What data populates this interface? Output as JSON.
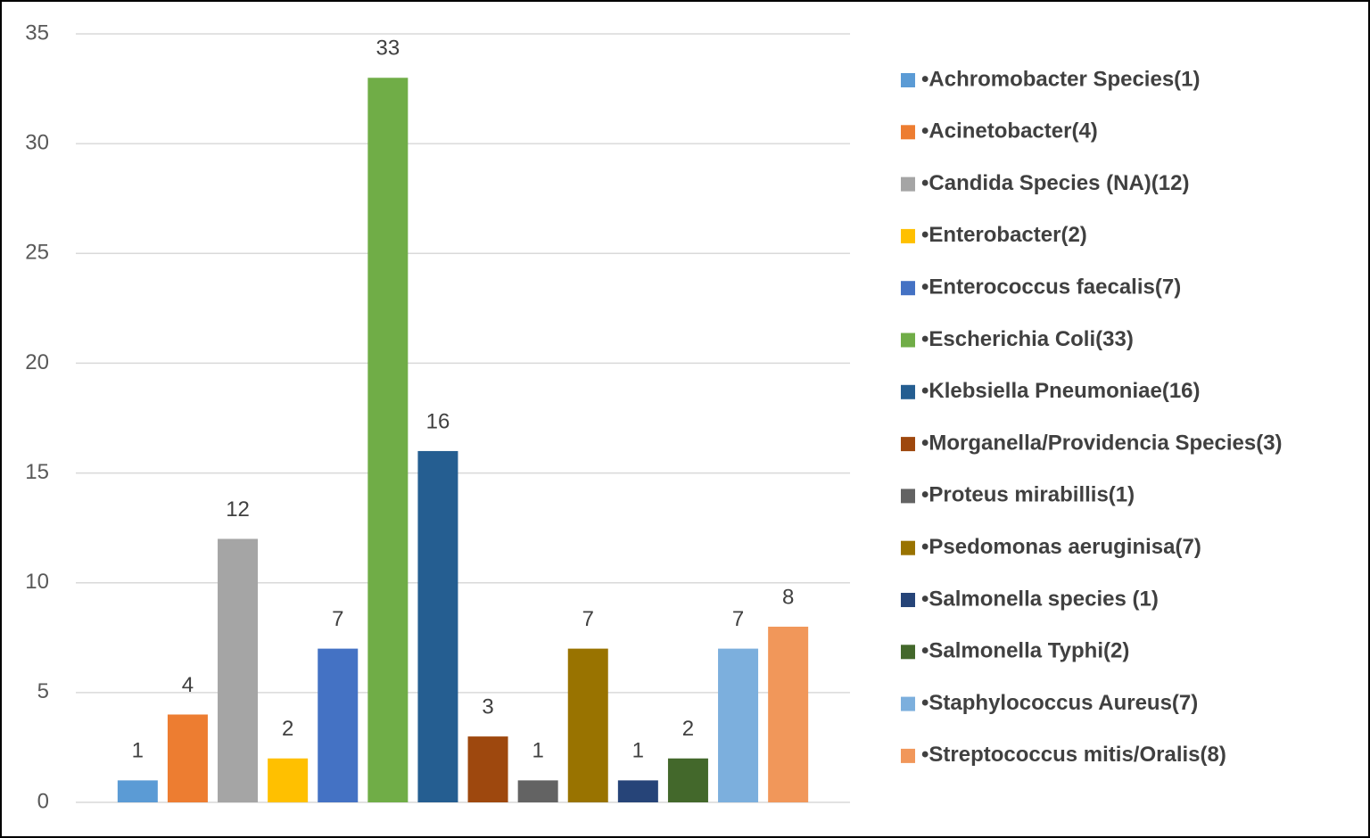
{
  "chart_data": {
    "type": "bar",
    "categories": [
      null
    ],
    "series": [
      {
        "name": "•Achromobacter Species(1)",
        "color": "#5b9bd5",
        "values": [
          1
        ]
      },
      {
        "name": "•Acinetobacter(4)",
        "color": "#ed7d31",
        "values": [
          4
        ]
      },
      {
        "name": "•Candida Species (NA)(12)",
        "color": "#a5a5a5",
        "values": [
          12
        ]
      },
      {
        "name": "•Enterobacter(2)",
        "color": "#ffc000",
        "values": [
          2
        ]
      },
      {
        "name": "•Enterococcus faecalis(7)",
        "color": "#4472c4",
        "values": [
          7
        ]
      },
      {
        "name": "•Escherichia Coli(33)",
        "color": "#70ad47",
        "values": [
          33
        ]
      },
      {
        "name": "•Klebsiella Pneumoniae(16)",
        "color": "#255e91",
        "values": [
          16
        ]
      },
      {
        "name": "•Morganella/Providencia Species(3)",
        "color": "#9e480e",
        "values": [
          3
        ]
      },
      {
        "name": "•Proteus mirabillis(1)",
        "color": "#636363",
        "values": [
          1
        ]
      },
      {
        "name": "•Psedomonas aeruginisa(7)",
        "color": "#997300",
        "values": [
          7
        ]
      },
      {
        "name": "•Salmonella species (1)",
        "color": "#264478",
        "values": [
          1
        ]
      },
      {
        "name": "•Salmonella Typhi(2)",
        "color": "#43682b",
        "values": [
          2
        ]
      },
      {
        "name": "•Staphylococcus Aureus(7)",
        "color": "#7cafdd",
        "values": [
          7
        ]
      },
      {
        "name": "•Streptococcus mitis/Oralis(8)",
        "color": "#f1975a",
        "values": [
          8
        ]
      }
    ],
    "ylim": [
      0,
      35
    ],
    "yticks": [
      0,
      5,
      10,
      15,
      20,
      25,
      30,
      35
    ],
    "grid": true,
    "legend": "right"
  }
}
